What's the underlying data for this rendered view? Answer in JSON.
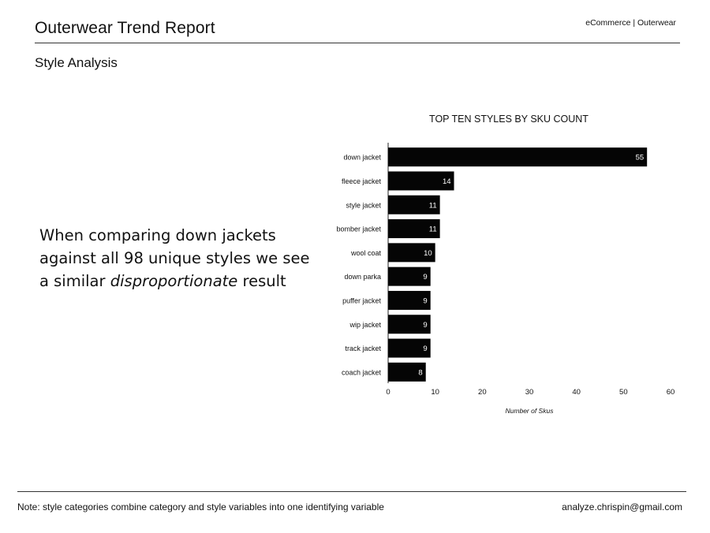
{
  "header": {
    "title": "Outerwear Trend Report",
    "section": "Style Analysis",
    "tag": "eCommerce | Outerwear"
  },
  "callout": {
    "part1": "When comparing down jackets against all 98 unique styles we see a similar ",
    "emphasis": "disproportionate",
    "part2": " result"
  },
  "footer": {
    "note": "Note: style categories combine category and style variables into one identifying variable",
    "email": "analyze.chrispin@gmail.com"
  },
  "chart_data": {
    "type": "bar",
    "orientation": "horizontal",
    "title": "TOP TEN STYLES BY SKU COUNT",
    "xlabel": "Number of Skus",
    "ylabel": "",
    "categories": [
      "down jacket",
      "fleece jacket",
      "style jacket",
      "bomber jacket",
      "wool coat",
      "down parka",
      "puffer jacket",
      "wip jacket",
      "track jacket",
      "coach jacket"
    ],
    "values": [
      55,
      14,
      11,
      11,
      10,
      9,
      9,
      9,
      9,
      8
    ],
    "xlim": [
      0,
      60
    ],
    "xticks": [
      0,
      10,
      20,
      30,
      40,
      50,
      60
    ],
    "grid": false,
    "data_labels": true,
    "bar_color": "#050505",
    "label_color": "#ffffff"
  }
}
